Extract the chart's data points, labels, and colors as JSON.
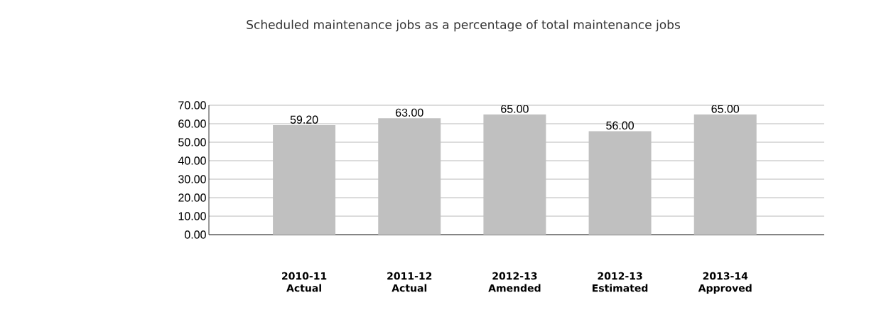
{
  "chart_data": {
    "type": "bar",
    "title": "Scheduled maintenance jobs as a percentage of total maintenance jobs",
    "categories": [
      "2010-11 Actual",
      "2011-12 Actual",
      "2012-13 Amended",
      "2012-13 Estimated",
      "2013-14 Approved"
    ],
    "values": [
      59.2,
      63,
      65,
      56,
      65
    ],
    "value_labels": [
      "59.20",
      "63.00",
      "65.00",
      "56.00",
      "65.00"
    ],
    "color": "#c0c0c0",
    "ylim": [
      0,
      70
    ],
    "yticks": [
      {
        "value": 0,
        "label": "0.00"
      },
      {
        "value": 10,
        "label": "10.00"
      },
      {
        "value": 20,
        "label": "20.00"
      },
      {
        "value": 30,
        "label": "30.00"
      },
      {
        "value": 40,
        "label": "40.00"
      },
      {
        "value": 50,
        "label": "50.00"
      },
      {
        "value": 60,
        "label": "60.00"
      },
      {
        "value": 70,
        "label": "70.00"
      }
    ],
    "grid": "y"
  }
}
